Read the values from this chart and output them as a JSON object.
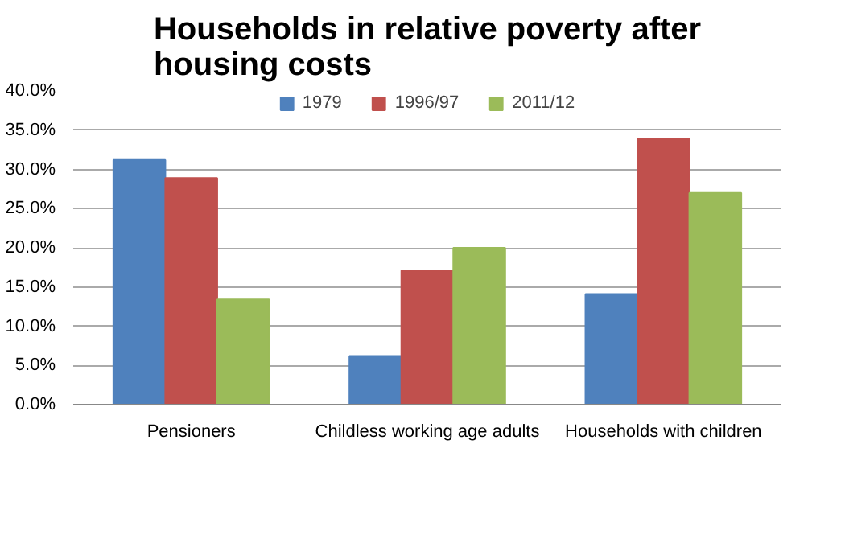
{
  "chart_data": {
    "type": "bar",
    "title": "Households in relative poverty after housing costs",
    "categories": [
      "Pensioners",
      "Childless working age adults",
      "Households with children"
    ],
    "series": [
      {
        "name": "1979",
        "color": "#4f81bd",
        "values": [
          31.2,
          6.2,
          14.1
        ]
      },
      {
        "name": "1996/97",
        "color": "#c0504d",
        "values": [
          28.9,
          17.1,
          33.9
        ]
      },
      {
        "name": "2011/12",
        "color": "#9bbb59",
        "values": [
          13.4,
          20.0,
          27.0
        ]
      }
    ],
    "ylim": [
      0,
      40
    ],
    "yticks": [
      {
        "value": 0,
        "label": "0.0%"
      },
      {
        "value": 5,
        "label": "5.0%"
      },
      {
        "value": 10,
        "label": "10.0%"
      },
      {
        "value": 15,
        "label": "15.0%"
      },
      {
        "value": 20,
        "label": "20.0%"
      },
      {
        "value": 25,
        "label": "25.0%"
      },
      {
        "value": 30,
        "label": "30.0%"
      },
      {
        "value": 35,
        "label": "35.0%"
      },
      {
        "value": 40,
        "label": "40.0%"
      }
    ],
    "grid": "y",
    "legend": "top"
  }
}
